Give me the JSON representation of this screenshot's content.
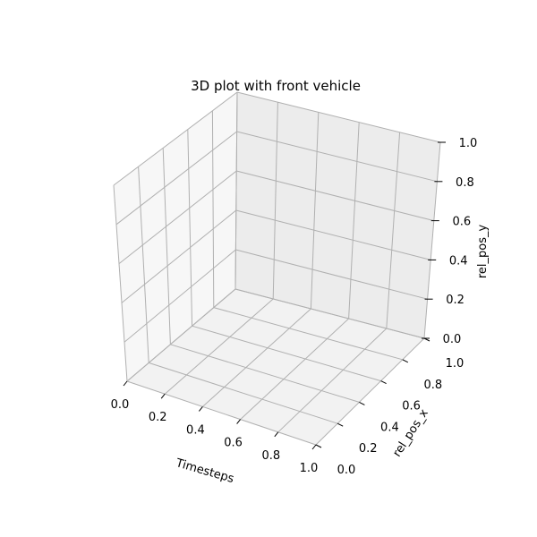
{
  "chart_data": {
    "type": "scatter",
    "title": "3D plot with front vehicle",
    "xlabel": "Timesteps",
    "ylabel": "rel_pos_x",
    "zlabel": "rel_pos_y",
    "xlim": [
      0.0,
      1.0
    ],
    "ylim": [
      0.0,
      1.0
    ],
    "zlim": [
      0.0,
      1.0
    ],
    "x_ticks": [
      "0.0",
      "0.2",
      "0.4",
      "0.6",
      "0.8",
      "1.0"
    ],
    "y_ticks": [
      "0.0",
      "0.2",
      "0.4",
      "0.6",
      "0.8",
      "1.0"
    ],
    "z_ticks": [
      "0.0",
      "0.2",
      "0.4",
      "0.6",
      "0.8",
      "1.0"
    ],
    "grid": true,
    "series": []
  }
}
